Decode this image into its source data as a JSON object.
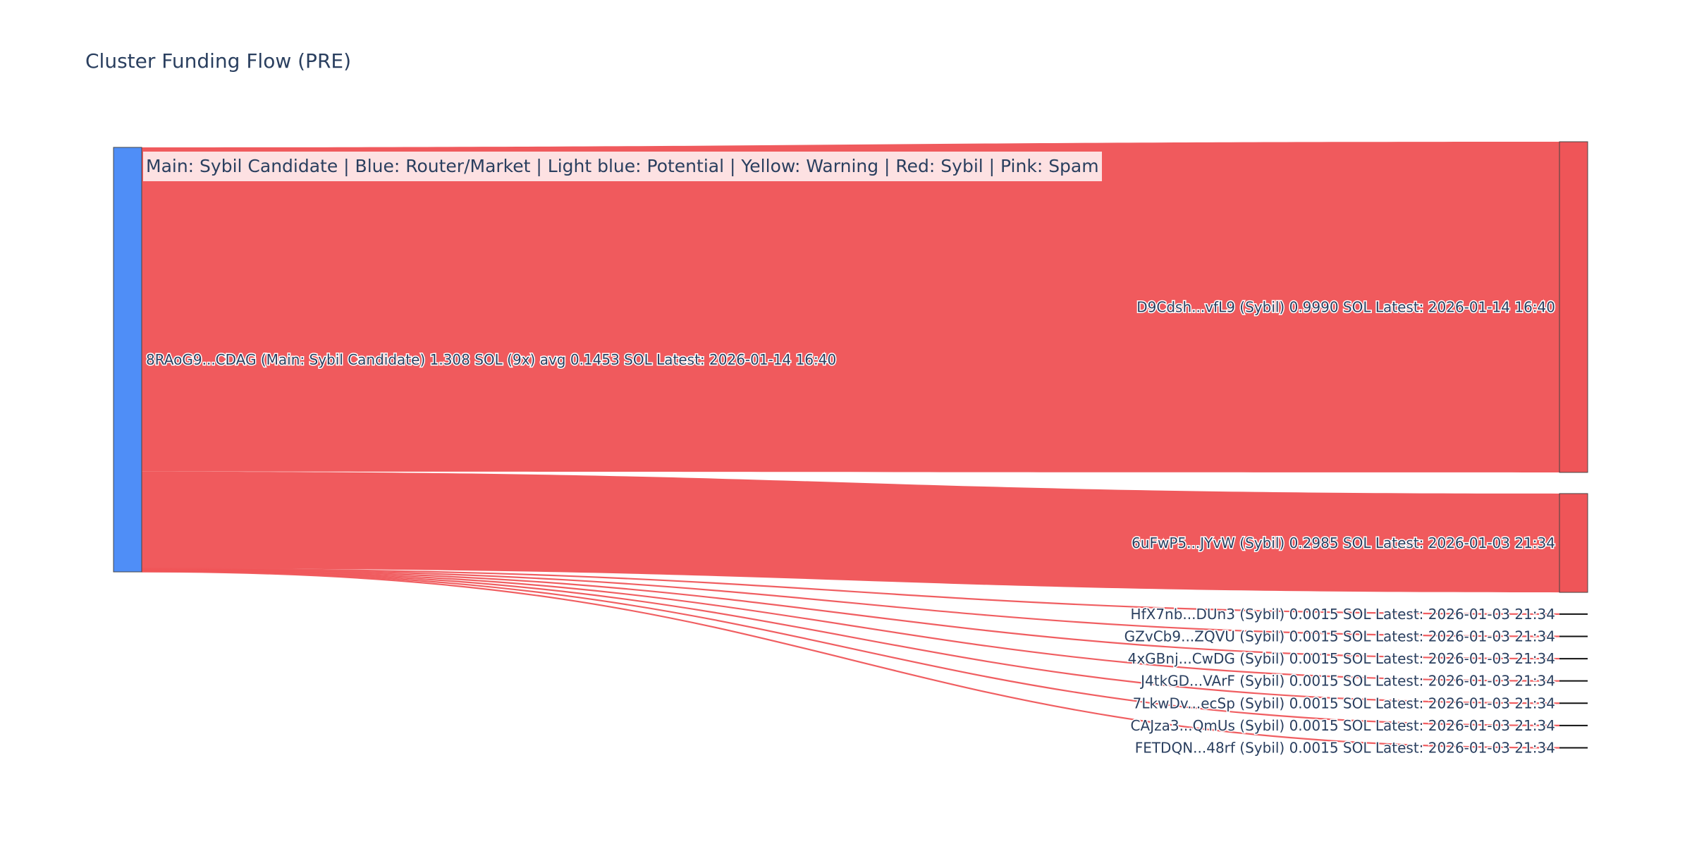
{
  "title": "Cluster Funding Flow (PRE)",
  "legend_note": "Main: Sybil Candidate  |  Blue: Router/Market | Light blue: Potential | Yellow: Warning | Red: Sybil | Pink: Spam",
  "colors": {
    "source_node": "#4f8ef7",
    "target_node": "#ef5558",
    "flow": "#ef5558",
    "node_border": "#444444",
    "text": "#2a3f5f"
  },
  "chart_data": {
    "type": "sankey",
    "title": "Cluster Funding Flow (PRE)",
    "source": {
      "label": "8RAoG9...CDAG (Main: Sybil Candidate) 1.308 SOL (9x) avg 0.1453 SOL Latest: 2026-01-14 16:40",
      "value": 1.308
    },
    "targets": [
      {
        "label": "D9Cdsh...vfL9 (Sybil) 0.9990 SOL Latest: 2026-01-14 16:40",
        "value": 0.999,
        "category": "Sybil"
      },
      {
        "label": "6uFwP5...JYvW (Sybil) 0.2985 SOL Latest: 2026-01-03 21:34",
        "value": 0.2985,
        "category": "Sybil"
      },
      {
        "label": "HfX7nb...DUn3 (Sybil) 0.0015 SOL Latest: 2026-01-03 21:34",
        "value": 0.0015,
        "category": "Sybil"
      },
      {
        "label": "GZvCb9...ZQVU (Sybil) 0.0015 SOL Latest: 2026-01-03 21:34",
        "value": 0.0015,
        "category": "Sybil"
      },
      {
        "label": "4xGBnj...CwDG (Sybil) 0.0015 SOL Latest: 2026-01-03 21:34",
        "value": 0.0015,
        "category": "Sybil"
      },
      {
        "label": "J4tkGD...VArF (Sybil) 0.0015 SOL Latest: 2026-01-03 21:34",
        "value": 0.0015,
        "category": "Sybil"
      },
      {
        "label": "7LkwDv...ecSp (Sybil) 0.0015 SOL Latest: 2026-01-03 21:34",
        "value": 0.0015,
        "category": "Sybil"
      },
      {
        "label": "CAJza3...QmUs (Sybil) 0.0015 SOL Latest: 2026-01-03 21:34",
        "value": 0.0015,
        "category": "Sybil"
      },
      {
        "label": "FETDQN...48rf (Sybil) 0.0015 SOL Latest: 2026-01-03 21:34",
        "value": 0.0015,
        "category": "Sybil"
      }
    ]
  }
}
